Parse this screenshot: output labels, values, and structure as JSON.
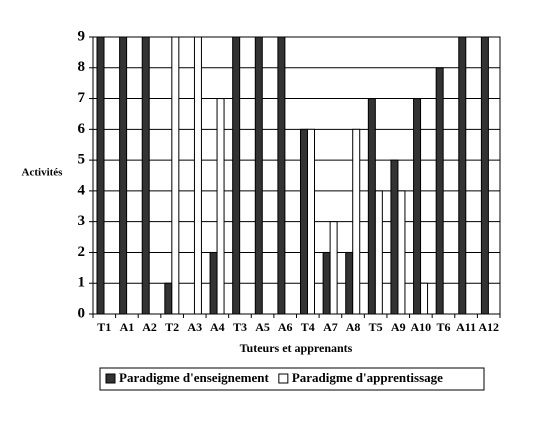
{
  "chart_data": {
    "type": "bar",
    "y_label": "Activités",
    "x_label": "Tuteurs et apprenants",
    "categories": [
      "T1",
      "A1",
      "A2",
      "T2",
      "A3",
      "A4",
      "T3",
      "A5",
      "A6",
      "T4",
      "A7",
      "A8",
      "T5",
      "A9",
      "A10",
      "T6",
      "A11",
      "A12"
    ],
    "series": [
      {
        "name": "Paradigme d'enseignement",
        "color": "#333333",
        "values": [
          9,
          9,
          9,
          1,
          0,
          2,
          9,
          9,
          9,
          6,
          2,
          2,
          7,
          5,
          7,
          8,
          9,
          9
        ]
      },
      {
        "name": "Paradigme d'apprentissage",
        "color": "#ffffff",
        "values": [
          0,
          0,
          0,
          9,
          9,
          7,
          0,
          0,
          0,
          6,
          3,
          6,
          4,
          4,
          1,
          0,
          0,
          0
        ]
      }
    ],
    "ylim": [
      0,
      9
    ],
    "yticks": [
      0,
      1,
      2,
      3,
      4,
      5,
      6,
      7,
      8,
      9
    ],
    "grid": true,
    "legend": "bottom"
  }
}
